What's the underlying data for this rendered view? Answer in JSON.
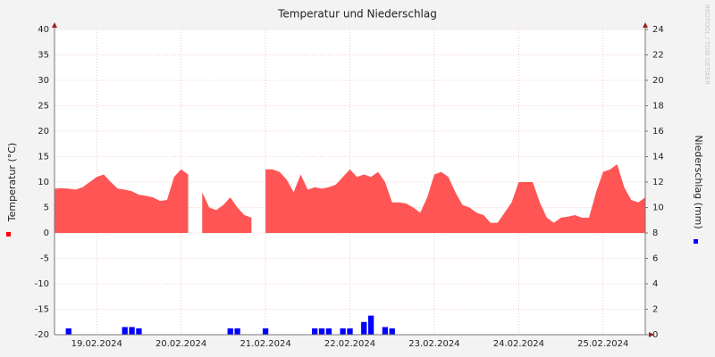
{
  "chart_data": {
    "type": "area",
    "title": "Temperatur und Niederschlag",
    "ylabel": "Temperatur (°C)",
    "y2label": "Niederschlag (mm)",
    "watermark": "RRDTOOL / TOBI OETIKER",
    "categories": [
      null,
      null,
      null,
      null,
      null,
      null,
      "19.02.2024",
      null,
      null,
      null,
      null,
      null,
      null,
      null,
      null,
      null,
      null,
      null,
      "20.02.2024",
      null,
      null,
      null,
      null,
      null,
      null,
      null,
      null,
      null,
      null,
      null,
      "21.02.2024",
      null,
      null,
      null,
      null,
      null,
      null,
      null,
      null,
      null,
      null,
      null,
      "22.02.2024",
      null,
      null,
      null,
      null,
      null,
      null,
      null,
      null,
      null,
      null,
      null,
      "23.02.2024",
      null,
      null,
      null,
      null,
      null,
      null,
      null,
      null,
      null,
      null,
      null,
      "24.02.2024",
      null,
      null,
      null,
      null,
      null,
      null,
      null,
      null,
      null,
      null,
      null,
      "25.02.2024",
      null,
      null,
      null,
      null,
      null,
      null
    ],
    "series": [
      {
        "type": "area",
        "color": "#ff5555",
        "values": [
          8.7,
          8.8,
          8.7,
          8.5,
          9,
          10,
          11,
          11.5,
          10,
          8.7,
          8.5,
          8.2,
          7.5,
          7.3,
          7,
          6.3,
          6.5,
          11,
          12.5,
          11.5,
          null,
          8,
          5,
          4.5,
          5.5,
          7,
          5,
          3.5,
          3,
          null,
          12.5,
          12.5,
          12,
          10.5,
          8,
          11.5,
          8.5,
          9,
          8.7,
          9,
          9.5,
          11,
          12.5,
          11,
          11.5,
          11,
          12,
          10,
          6,
          6,
          5.8,
          5,
          4,
          7,
          11.5,
          12,
          11,
          8,
          5.5,
          5,
          4,
          3.5,
          2,
          2,
          4,
          6,
          10,
          10,
          10,
          6,
          3,
          2,
          3,
          3.2,
          3.5,
          3,
          3,
          8,
          12,
          12.5,
          13.5,
          9,
          6.5,
          6,
          7
        ]
      },
      {
        "type": "bar",
        "axis": "y2",
        "color": "#0000ff",
        "values": [
          0,
          0,
          0.5,
          0,
          0,
          0,
          0,
          0,
          0,
          0,
          0.6,
          0.6,
          0.5,
          0,
          0,
          0,
          0,
          0,
          0,
          0,
          0,
          0,
          0,
          0,
          0,
          0.5,
          0.5,
          0,
          0,
          0,
          0.5,
          0,
          0,
          0,
          0,
          0,
          0,
          0.5,
          0.5,
          0.5,
          0,
          0.5,
          0.5,
          0,
          1,
          1.5,
          0,
          0.6,
          0.5,
          0,
          0,
          0,
          0,
          0,
          0,
          0,
          0,
          0,
          0,
          0,
          0,
          0,
          0,
          0,
          0,
          0,
          0,
          0,
          0,
          0,
          0,
          0,
          0,
          0,
          0,
          0,
          0,
          0,
          0,
          0,
          0,
          0,
          0,
          0,
          0
        ]
      }
    ],
    "ylim": [
      -20,
      40
    ],
    "yticks": [
      -20,
      -15,
      -10,
      -5,
      0,
      5,
      10,
      15,
      20,
      25,
      30,
      35,
      40
    ],
    "y2lim": [
      0,
      24
    ],
    "y2ticks": [
      0,
      2,
      4,
      6,
      8,
      10,
      12,
      14,
      16,
      18,
      20,
      22,
      24
    ],
    "grid": true
  }
}
